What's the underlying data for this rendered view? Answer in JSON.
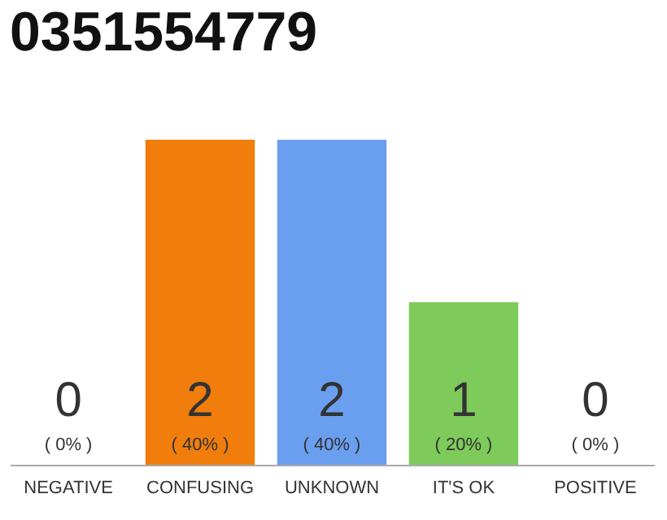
{
  "chart_data": {
    "type": "bar",
    "title": "0351554779",
    "categories": [
      "NEGATIVE",
      "CONFUSING",
      "UNKNOWN",
      "IT'S OK",
      "POSITIVE"
    ],
    "values": [
      0,
      2,
      2,
      1,
      0
    ],
    "colors": [
      "#e0e0e0",
      "#f07d0c",
      "#6a9ff0",
      "#7ecb5b",
      "#e0e0e0"
    ],
    "data_labels": true,
    "annotations": [
      "( 0% )",
      "( 40% )",
      "( 40% )",
      "( 20% )",
      "( 0% )"
    ]
  }
}
